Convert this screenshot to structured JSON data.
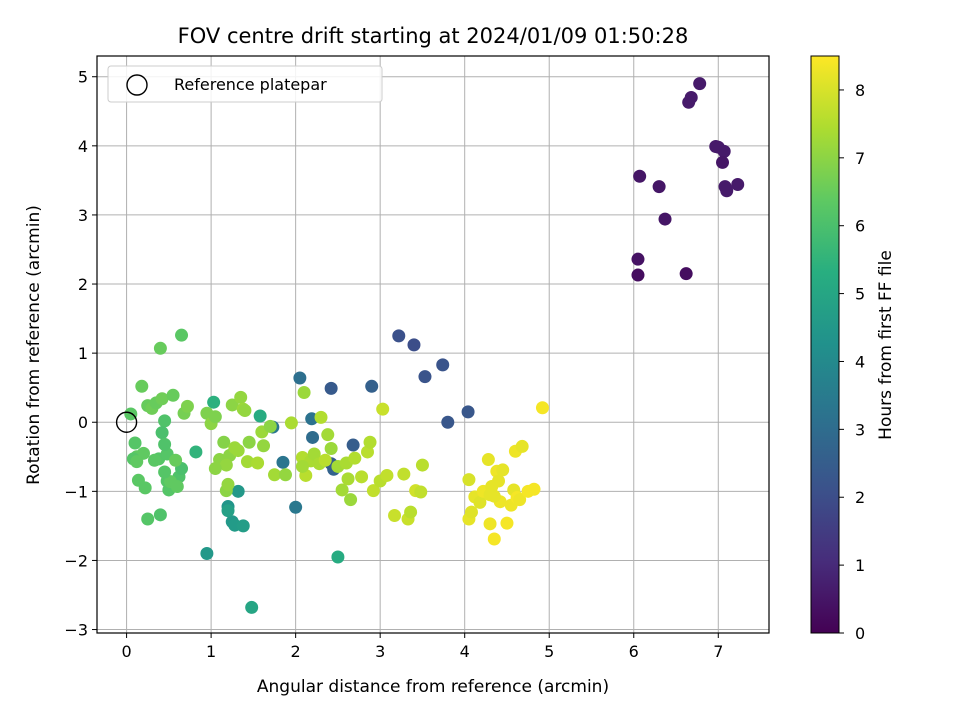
{
  "chart_data": {
    "type": "scatter",
    "title": "FOV centre drift starting at 2024/01/09 01:50:28",
    "xlabel": "Angular distance from reference (arcmin)",
    "ylabel": "Rotation from reference (arcmin)",
    "xlim": [
      -0.35,
      7.6
    ],
    "ylim": [
      -3.05,
      5.3
    ],
    "xticks": [
      0,
      1,
      2,
      3,
      4,
      5,
      6,
      7
    ],
    "yticks": [
      -3,
      -2,
      -1,
      0,
      1,
      2,
      3,
      4,
      5
    ],
    "xtick_labels": [
      "0",
      "1",
      "2",
      "3",
      "4",
      "5",
      "6",
      "7"
    ],
    "ytick_labels": [
      "−3",
      "−2",
      "−1",
      "0",
      "1",
      "2",
      "3",
      "4",
      "5"
    ],
    "grid": true,
    "legend": {
      "placement": "top-left",
      "entries": [
        "Reference platepar"
      ]
    },
    "reference_point": {
      "x": 0.0,
      "y": 0.0
    },
    "colorbar": {
      "label": "Hours from first FF file",
      "colormap": "viridis",
      "range": [
        0,
        8.5
      ],
      "ticks": [
        0,
        1,
        2,
        3,
        4,
        5,
        6,
        7,
        8
      ],
      "tick_labels": [
        "0",
        "1",
        "2",
        "3",
        "4",
        "5",
        "6",
        "7",
        "8"
      ]
    },
    "series": [
      {
        "x": [
          6.05,
          6.05,
          6.62,
          6.37,
          6.07,
          6.3,
          6.65,
          6.68,
          6.78,
          6.97,
          7.0,
          7.07,
          7.05,
          7.08,
          7.1,
          7.23
        ],
        "y": [
          2.13,
          2.36,
          2.15,
          2.94,
          3.56,
          3.41,
          4.63,
          4.7,
          4.9,
          3.99,
          3.98,
          3.92,
          3.76,
          3.41,
          3.35,
          3.44
        ],
        "c": [
          0.3,
          0.4,
          0.3,
          0.5,
          0.5,
          0.5,
          0.6,
          0.6,
          0.6,
          0.6,
          0.6,
          0.6,
          0.5,
          0.6,
          0.6,
          0.6
        ]
      },
      {
        "x": [
          3.22,
          3.4,
          3.53,
          3.74,
          3.8,
          4.04,
          2.9,
          2.42
        ],
        "y": [
          1.25,
          1.12,
          0.66,
          0.83,
          0.0,
          0.15,
          0.52,
          0.49
        ],
        "c": [
          2.1,
          2.0,
          2.2,
          2.2,
          2.3,
          2.3,
          2.6,
          2.4
        ]
      },
      {
        "x": [
          2.68,
          2.45,
          2.42,
          2.2,
          2.19,
          2.05,
          2.0,
          1.73,
          1.85
        ],
        "y": [
          -0.33,
          -0.68,
          -0.6,
          -0.22,
          0.05,
          0.64,
          -1.23,
          -0.07,
          -0.58
        ],
        "c": [
          2.5,
          2.7,
          2.5,
          3.0,
          3.2,
          3.1,
          3.4,
          3.4,
          3.3
        ]
      },
      {
        "x": [
          0.95,
          1.2,
          1.25,
          1.28,
          1.38,
          1.32,
          1.48,
          1.58,
          2.5,
          1.2,
          0.82,
          1.03
        ],
        "y": [
          -1.9,
          -1.22,
          -1.44,
          -1.49,
          -1.5,
          -1.0,
          -2.68,
          0.09,
          -1.95,
          -1.28,
          -0.43,
          0.29
        ],
        "c": [
          4.5,
          4.4,
          4.5,
          4.6,
          4.7,
          4.5,
          5.0,
          5.2,
          5.2,
          4.8,
          5.5,
          5.4
        ]
      },
      {
        "x": [
          0.05,
          0.1,
          0.12,
          0.18,
          0.2,
          0.25,
          0.3,
          0.35,
          0.38,
          0.42,
          0.45,
          0.48,
          0.5,
          0.55,
          0.62,
          0.65,
          0.68,
          0.72,
          0.4,
          0.42,
          0.45,
          0.48,
          0.25,
          0.4,
          0.65,
          0.33,
          0.52,
          0.58,
          0.14,
          0.08,
          0.12,
          0.22,
          0.45,
          0.6
        ],
        "y": [
          0.12,
          -0.3,
          -0.5,
          0.52,
          -0.45,
          0.24,
          0.2,
          0.28,
          -0.53,
          0.34,
          0.02,
          -0.46,
          -0.98,
          0.39,
          -0.79,
          1.26,
          0.13,
          0.23,
          1.07,
          -0.15,
          -0.32,
          -0.85,
          -1.4,
          -1.34,
          -0.67,
          -0.55,
          -0.86,
          -0.55,
          -0.84,
          -0.53,
          -0.57,
          -0.95,
          -0.72,
          -0.93
        ],
        "c": [
          6.3,
          6.2,
          6.4,
          6.5,
          6.4,
          6.5,
          6.6,
          6.5,
          6.2,
          6.6,
          6.1,
          6.2,
          6.2,
          6.5,
          6.1,
          6.3,
          6.7,
          6.8,
          6.5,
          6.0,
          6.1,
          6.2,
          6.2,
          6.1,
          6.0,
          6.3,
          6.4,
          6.5,
          6.3,
          6.2,
          6.4,
          6.3,
          6.2,
          6.4
        ]
      },
      {
        "x": [
          0.95,
          1.0,
          1.05,
          1.1,
          1.15,
          1.18,
          1.2,
          1.22,
          1.25,
          1.28,
          1.32,
          1.35,
          1.38,
          1.4,
          1.43,
          1.45,
          1.55,
          1.6,
          1.62,
          1.7,
          1.75,
          1.88,
          1.95,
          2.08,
          2.1,
          2.12,
          2.18,
          2.22,
          2.28,
          2.3,
          2.35,
          2.38,
          2.42,
          2.5,
          2.55,
          2.6,
          2.62,
          2.65,
          2.7,
          2.78,
          2.85,
          2.88,
          2.92,
          3.0,
          3.03,
          3.08,
          3.17,
          3.28,
          3.33,
          3.36,
          3.42,
          3.48,
          3.5,
          2.08,
          1.18,
          1.05
        ],
        "y": [
          0.13,
          -0.02,
          0.08,
          -0.54,
          -0.29,
          -0.99,
          -0.9,
          -0.48,
          0.25,
          -0.37,
          -0.41,
          0.36,
          0.19,
          0.17,
          -0.57,
          -0.29,
          -0.59,
          -0.14,
          -0.34,
          -0.06,
          -0.76,
          -0.76,
          -0.01,
          -0.51,
          0.43,
          -0.77,
          -0.56,
          -0.46,
          -0.6,
          0.07,
          -0.55,
          -0.18,
          -0.38,
          -0.64,
          -0.98,
          -0.59,
          -0.82,
          -1.12,
          -0.52,
          -0.79,
          -0.43,
          -0.29,
          -0.99,
          -0.85,
          0.19,
          -0.77,
          -1.35,
          -0.75,
          -1.4,
          -1.3,
          -0.99,
          -1.01,
          -0.62,
          -0.64,
          -0.62,
          -0.67
        ],
        "c": [
          6.8,
          7.0,
          6.8,
          7.0,
          6.9,
          7.0,
          7.1,
          7.0,
          7.0,
          7.2,
          7.2,
          7.1,
          7.2,
          7.1,
          7.3,
          7.0,
          7.4,
          7.2,
          7.1,
          7.0,
          7.3,
          7.1,
          7.4,
          7.5,
          7.2,
          7.6,
          7.4,
          7.3,
          7.4,
          7.5,
          7.6,
          7.3,
          7.2,
          7.3,
          7.3,
          7.4,
          7.4,
          7.2,
          7.5,
          7.6,
          7.6,
          7.5,
          7.7,
          7.6,
          7.8,
          7.7,
          7.8,
          7.7,
          7.8,
          7.6,
          7.9,
          7.7,
          7.6,
          7.3,
          7.1,
          7.0
        ]
      },
      {
        "x": [
          4.05,
          4.05,
          4.08,
          4.12,
          4.18,
          4.22,
          4.28,
          4.3,
          4.32,
          4.35,
          4.38,
          4.4,
          4.42,
          4.45,
          4.5,
          4.55,
          4.58,
          4.6,
          4.62,
          4.65,
          4.68,
          4.75,
          4.82,
          4.92,
          4.35,
          4.3
        ],
        "y": [
          -0.83,
          -1.4,
          -1.3,
          -1.08,
          -1.16,
          -1.0,
          -0.54,
          -1.47,
          -0.93,
          -1.69,
          -0.71,
          -0.85,
          -1.15,
          -0.69,
          -1.46,
          -1.2,
          -0.98,
          -0.42,
          -1.09,
          -1.12,
          -0.35,
          -1.0,
          -0.97,
          0.21,
          -1.07,
          -1.05
        ],
        "c": [
          8.0,
          8.2,
          8.1,
          8.2,
          8.1,
          8.3,
          8.2,
          8.3,
          8.2,
          8.4,
          8.3,
          8.2,
          8.3,
          8.2,
          8.4,
          8.3,
          8.2,
          8.3,
          8.4,
          8.3,
          8.2,
          8.4,
          8.4,
          8.4,
          8.2,
          8.2
        ]
      }
    ]
  }
}
